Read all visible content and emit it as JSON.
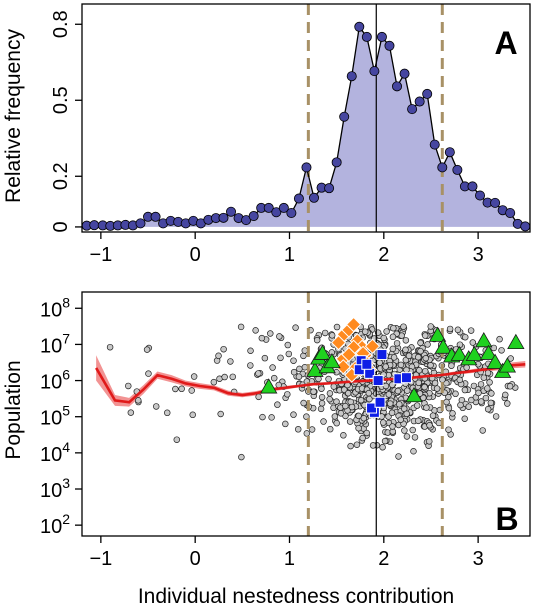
{
  "chart_data": [
    {
      "panel": "A",
      "type": "area",
      "ylabel": "Relative frequency",
      "xlabel": "",
      "xlim": [
        -1.2,
        3.55
      ],
      "ylim": [
        -0.02,
        0.88
      ],
      "x_ticks": [
        -1,
        0,
        1,
        2,
        3
      ],
      "y_ticks": [
        {
          "value": 0.0,
          "label": "0"
        },
        {
          "value": 0.2,
          "label": "0.2"
        },
        {
          "value": 0.5,
          "label": "0.5"
        },
        {
          "value": 0.8,
          "label": "0.8"
        }
      ],
      "vlines": [
        {
          "x": 1.2,
          "style": "dashed",
          "color": "#a89166"
        },
        {
          "x": 1.92,
          "style": "solid",
          "color": "#000000"
        },
        {
          "x": 2.62,
          "style": "dashed",
          "color": "#a89166"
        }
      ],
      "fill_color": "#b3b3de",
      "point_color": "#4646a0",
      "points": [
        [
          -1.15,
          0.005
        ],
        [
          -1.07,
          0.007
        ],
        [
          -0.98,
          0.006
        ],
        [
          -0.9,
          0.004
        ],
        [
          -0.82,
          0.006
        ],
        [
          -0.74,
          0.008
        ],
        [
          -0.66,
          0.006
        ],
        [
          -0.58,
          0.014
        ],
        [
          -0.5,
          0.04
        ],
        [
          -0.42,
          0.04
        ],
        [
          -0.34,
          0.014
        ],
        [
          -0.26,
          0.024
        ],
        [
          -0.18,
          0.02
        ],
        [
          -0.1,
          0.014
        ],
        [
          -0.02,
          0.024
        ],
        [
          0.06,
          0.014
        ],
        [
          0.14,
          0.028
        ],
        [
          0.22,
          0.035
        ],
        [
          0.3,
          0.036
        ],
        [
          0.38,
          0.06
        ],
        [
          0.46,
          0.035
        ],
        [
          0.54,
          0.027
        ],
        [
          0.62,
          0.043
        ],
        [
          0.7,
          0.075
        ],
        [
          0.78,
          0.075
        ],
        [
          0.86,
          0.058
        ],
        [
          0.94,
          0.075
        ],
        [
          1.02,
          0.055
        ],
        [
          1.1,
          0.112
        ],
        [
          1.18,
          0.235
        ],
        [
          1.26,
          0.115
        ],
        [
          1.34,
          0.155
        ],
        [
          1.42,
          0.153
        ],
        [
          1.5,
          0.255
        ],
        [
          1.58,
          0.435
        ],
        [
          1.66,
          0.595
        ],
        [
          1.74,
          0.79
        ],
        [
          1.82,
          0.75
        ],
        [
          1.9,
          0.615
        ],
        [
          1.98,
          0.75
        ],
        [
          2.06,
          0.715
        ],
        [
          2.14,
          0.555
        ],
        [
          2.22,
          0.605
        ],
        [
          2.3,
          0.465
        ],
        [
          2.38,
          0.495
        ],
        [
          2.46,
          0.525
        ],
        [
          2.54,
          0.325
        ],
        [
          2.62,
          0.235
        ],
        [
          2.7,
          0.295
        ],
        [
          2.78,
          0.225
        ],
        [
          2.86,
          0.16
        ],
        [
          2.94,
          0.16
        ],
        [
          3.02,
          0.124
        ],
        [
          3.1,
          0.096
        ],
        [
          3.18,
          0.095
        ],
        [
          3.26,
          0.066
        ],
        [
          3.34,
          0.055
        ],
        [
          3.42,
          0.012
        ],
        [
          3.5,
          0.002
        ]
      ]
    },
    {
      "panel": "B",
      "type": "scatter",
      "ylabel": "Population",
      "xlabel": "Individual nestedness contribution",
      "xlim": [
        -1.2,
        3.55
      ],
      "log_y": true,
      "ylim_log10": [
        1.7,
        8.45
      ],
      "x_ticks": [
        -1,
        0,
        1,
        2,
        3
      ],
      "y_ticks": [
        {
          "exp": 2,
          "base": "10",
          "sup": "2"
        },
        {
          "exp": 3,
          "base": "10",
          "sup": "3"
        },
        {
          "exp": 4,
          "base": "10",
          "sup": "4"
        },
        {
          "exp": 5,
          "base": "10",
          "sup": "5"
        },
        {
          "exp": 6,
          "base": "10",
          "sup": "6"
        },
        {
          "exp": 7,
          "base": "10",
          "sup": "7"
        },
        {
          "exp": 8,
          "base": "10",
          "sup": "8"
        }
      ],
      "vlines": [
        {
          "x": 1.2,
          "style": "dashed",
          "color": "#a89166"
        },
        {
          "x": 1.92,
          "style": "solid",
          "color": "#000000"
        },
        {
          "x": 2.62,
          "style": "dashed",
          "color": "#a89166"
        }
      ],
      "scatter_color": "#c8c8c8",
      "scatter_log10_mean": 6.0,
      "scatter_log10_sd": 0.8,
      "trend_line_color": "#e01a1a",
      "trend_band_color": "#f08080",
      "trend": [
        [
          -1.05,
          6.35,
          0.35
        ],
        [
          -0.85,
          5.45,
          0.15
        ],
        [
          -0.7,
          5.4,
          0.12
        ],
        [
          -0.55,
          5.75,
          0.12
        ],
        [
          -0.4,
          6.15,
          0.1
        ],
        [
          -0.25,
          6.05,
          0.1
        ],
        [
          -0.1,
          5.92,
          0.08
        ],
        [
          0.05,
          5.85,
          0.08
        ],
        [
          0.2,
          5.8,
          0.07
        ],
        [
          0.35,
          5.65,
          0.07
        ],
        [
          0.5,
          5.6,
          0.06
        ],
        [
          0.65,
          5.65,
          0.06
        ],
        [
          0.8,
          5.75,
          0.05
        ],
        [
          0.95,
          5.8,
          0.05
        ],
        [
          1.1,
          5.85,
          0.04
        ],
        [
          1.25,
          5.9,
          0.04
        ],
        [
          1.4,
          5.92,
          0.03
        ],
        [
          1.55,
          5.95,
          0.03
        ],
        [
          1.7,
          5.98,
          0.03
        ],
        [
          1.85,
          6.0,
          0.03
        ],
        [
          2.0,
          6.03,
          0.03
        ],
        [
          2.15,
          6.05,
          0.03
        ],
        [
          2.3,
          6.08,
          0.03
        ],
        [
          2.45,
          6.12,
          0.04
        ],
        [
          2.6,
          6.15,
          0.04
        ],
        [
          2.75,
          6.2,
          0.05
        ],
        [
          2.9,
          6.25,
          0.05
        ],
        [
          3.05,
          6.3,
          0.06
        ],
        [
          3.2,
          6.35,
          0.07
        ],
        [
          3.35,
          6.42,
          0.08
        ],
        [
          3.5,
          6.45,
          0.09
        ]
      ],
      "highlight_orange_diamonds": {
        "color": "#ff8a1f",
        "points": [
          [
            1.52,
            7.05
          ],
          [
            1.58,
            7.28
          ],
          [
            1.63,
            7.4
          ],
          [
            1.68,
            7.55
          ],
          [
            1.72,
            7.1
          ],
          [
            1.77,
            6.92
          ],
          [
            1.68,
            6.92
          ],
          [
            1.8,
            6.7
          ],
          [
            1.82,
            6.48
          ],
          [
            1.57,
            6.6
          ],
          [
            1.63,
            6.72
          ],
          [
            1.7,
            6.35
          ],
          [
            1.88,
            6.95
          ],
          [
            1.75,
            6.3
          ],
          [
            1.66,
            6.15
          ],
          [
            1.57,
            6.38
          ],
          [
            1.85,
            6.3
          ],
          [
            1.78,
            6.75
          ]
        ]
      },
      "highlight_blue_squares": {
        "color": "#0e1ee6",
        "points": [
          [
            1.76,
            6.55
          ],
          [
            1.74,
            6.3
          ],
          [
            1.85,
            6.2
          ],
          [
            1.94,
            6.0
          ],
          [
            1.98,
            6.72
          ],
          [
            2.16,
            6.05
          ],
          [
            2.24,
            6.08
          ],
          [
            1.9,
            5.12
          ],
          [
            1.87,
            5.24
          ],
          [
            1.96,
            5.4
          ],
          [
            1.82,
            6.45
          ]
        ]
      },
      "highlight_green_triangles": {
        "color": "#1fd11f",
        "points": [
          [
            1.27,
            6.28
          ],
          [
            1.31,
            6.62
          ],
          [
            1.35,
            6.75
          ],
          [
            1.4,
            6.38
          ],
          [
            1.45,
            6.52
          ],
          [
            2.32,
            5.58
          ],
          [
            2.57,
            7.25
          ],
          [
            2.63,
            6.92
          ],
          [
            2.72,
            6.68
          ],
          [
            2.8,
            6.72
          ],
          [
            2.9,
            6.6
          ],
          [
            2.96,
            6.72
          ],
          [
            3.06,
            7.1
          ],
          [
            3.11,
            6.75
          ],
          [
            3.18,
            6.5
          ],
          [
            3.26,
            6.25
          ],
          [
            3.31,
            6.4
          ],
          [
            3.4,
            7.05
          ],
          [
            0.78,
            5.82
          ]
        ]
      }
    }
  ],
  "panels": {
    "a": {
      "letter": "A"
    },
    "b": {
      "letter": "B"
    }
  }
}
